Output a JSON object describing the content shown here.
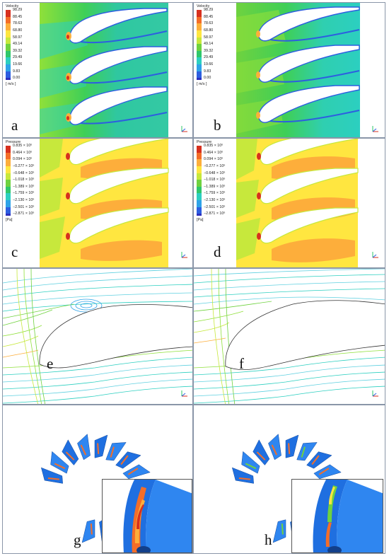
{
  "panels": [
    {
      "id": "a",
      "label": "a"
    },
    {
      "id": "b",
      "label": "b"
    },
    {
      "id": "c",
      "label": "c"
    },
    {
      "id": "d",
      "label": "d"
    },
    {
      "id": "e",
      "label": "e"
    },
    {
      "id": "f",
      "label": "f"
    },
    {
      "id": "g",
      "label": "g"
    },
    {
      "id": "h",
      "label": "h"
    }
  ],
  "velocity_legend": {
    "title": "Velocity",
    "unit": "[ m/s ]",
    "values": [
      "98.29",
      "88.45",
      "78.63",
      "68.80",
      "58.97",
      "49.14",
      "39.32",
      "29.49",
      "19.66",
      "9.83",
      "0.00"
    ],
    "colors": [
      "#d7301f",
      "#f46d28",
      "#fdae3b",
      "#fee640",
      "#c7e83c",
      "#6fd23f",
      "#2fc76b",
      "#2ccfc0",
      "#2ea3e8",
      "#2d5ee0",
      "#2b2fbe"
    ]
  },
  "velocity_legend_b": {
    "title": "Velocity",
    "unit": "[ m/s ]",
    "values": [
      "98.29",
      "88.45",
      "78.63",
      "68.80",
      "58.97",
      "49.14",
      "39.32",
      "29.49",
      "19.66",
      "9.83",
      "0.00"
    ]
  },
  "pressure_legend": {
    "title": "Pressure",
    "unit": "[Pa]",
    "values": [
      "0.835 × 10⁶",
      "0.464 × 10⁶",
      "0.094 × 10⁶",
      "−0.277 × 10⁶",
      "−0.648 × 10⁶",
      "−1.018 × 10⁶",
      "−1.389 × 10⁶",
      "−1.759 × 10⁶",
      "−2.130 × 10⁶",
      "−2.501 × 10⁶",
      "−2.871 × 10⁶"
    ],
    "colors": [
      "#d7301f",
      "#f46d28",
      "#fdae3b",
      "#fee640",
      "#c7e83c",
      "#6fd23f",
      "#2fc76b",
      "#2ccfc0",
      "#2ea3e8",
      "#2d5ee0",
      "#2b2fbe"
    ]
  },
  "pressure_legend_d": {
    "title": "Pressure",
    "unit": "[Pa]",
    "values": [
      "0.835 × 10⁶",
      "0.464 × 10⁶",
      "0.094 × 10⁶",
      "−0.277 × 10⁶",
      "−0.648 × 10⁶",
      "−1.018 × 10⁶",
      "−1.389 × 10⁶",
      "−1.759 × 10⁶",
      "−2.130 × 10⁶",
      "−2.501 × 10⁶",
      "−2.871 × 10⁶"
    ]
  },
  "colors": {
    "panel_border": "#8a96a8",
    "blade_blue": "#1f6fe0",
    "velocity_bg": "#4fd14a",
    "pressure_bg": "#ffe640"
  }
}
